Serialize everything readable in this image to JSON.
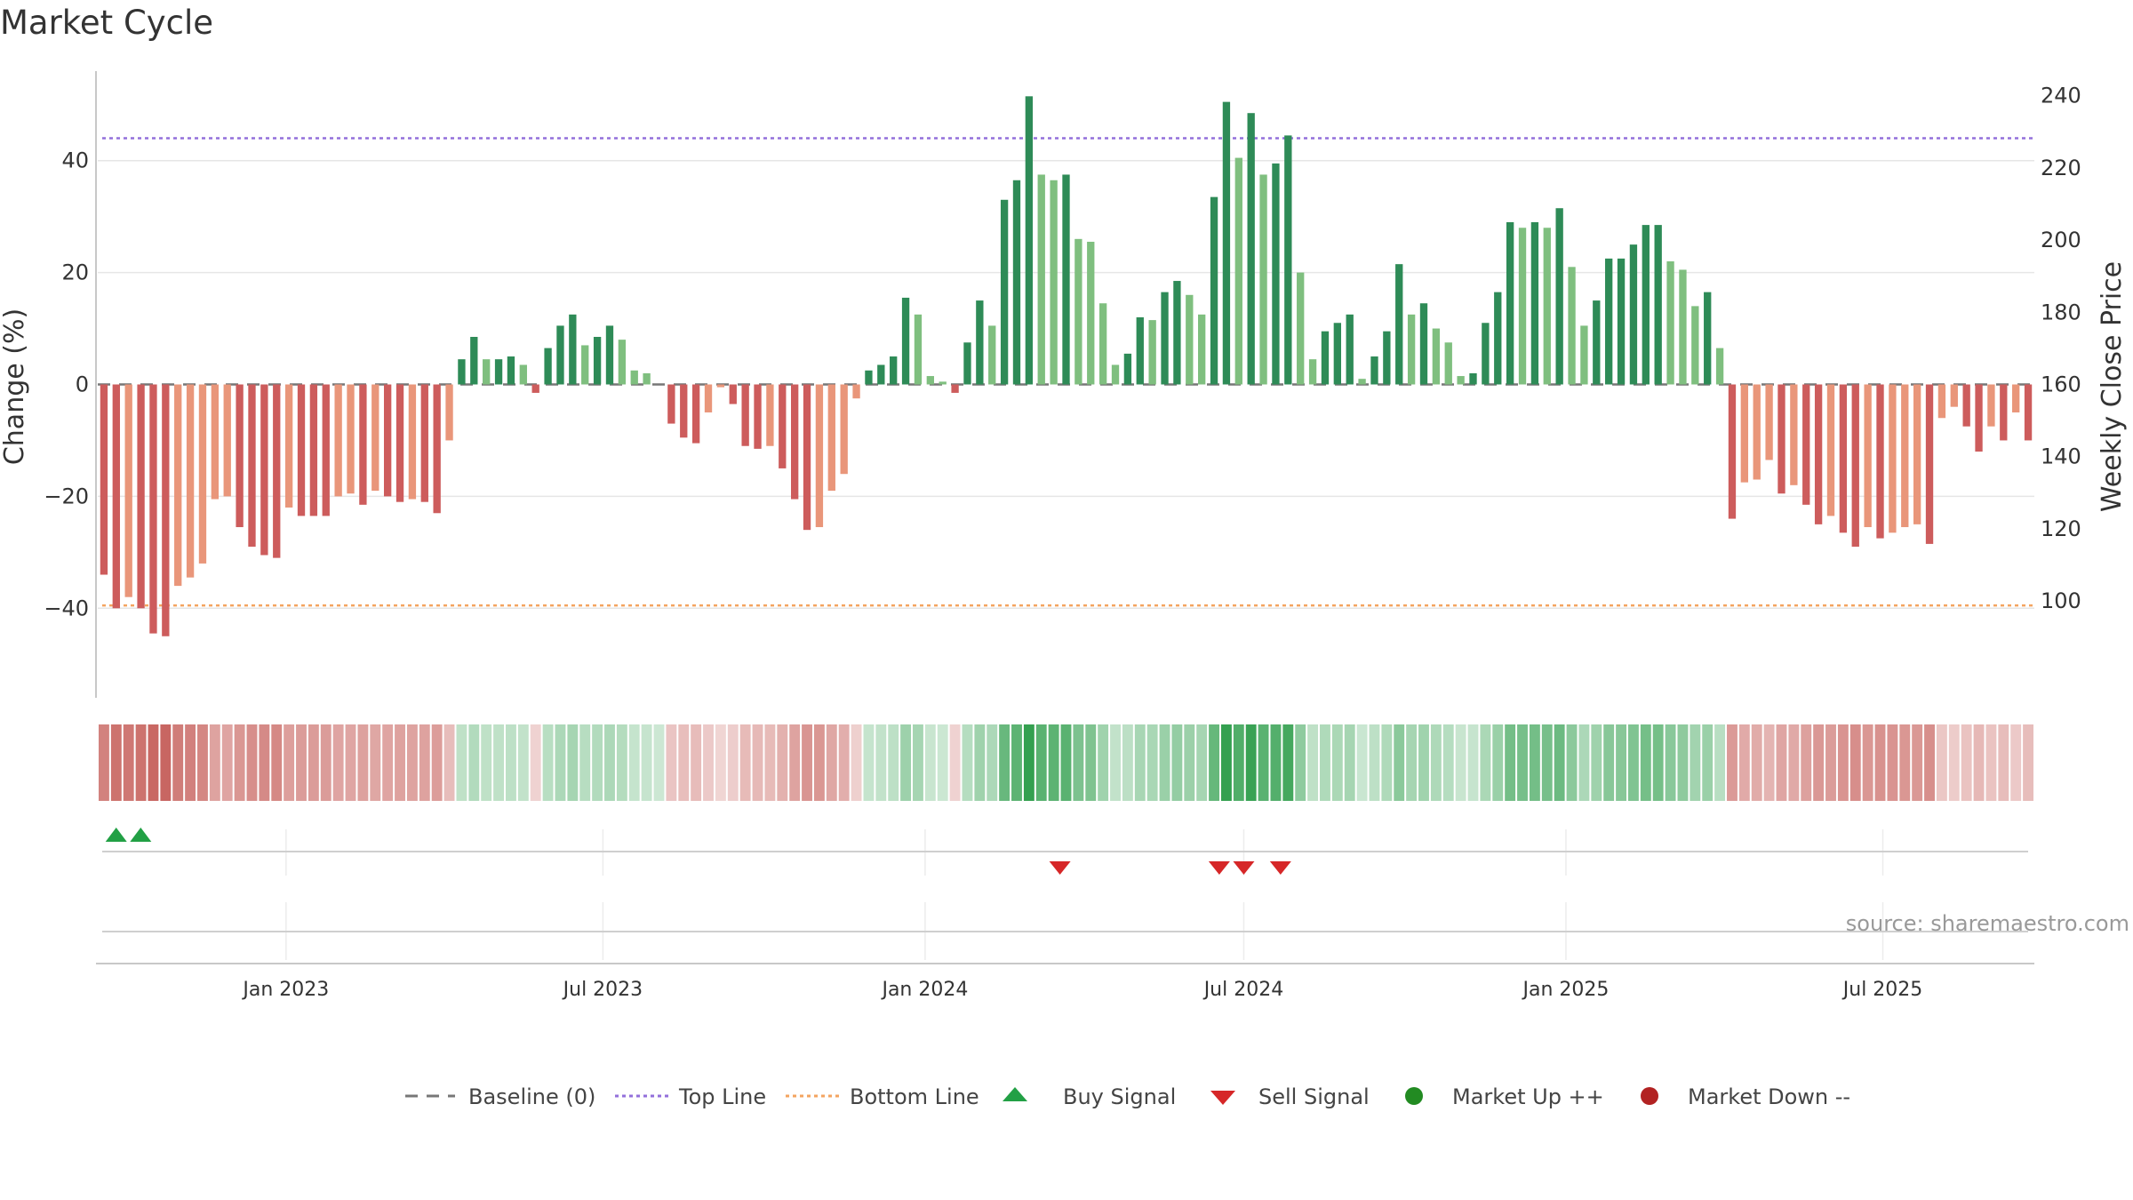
{
  "chart_data": {
    "type": "bar",
    "title": "Market Cycle",
    "ylabel": "Change (%)",
    "y2label": "Weekly Close Price",
    "ylim": [
      -56,
      56
    ],
    "yticks": [
      -40,
      -20,
      0,
      20,
      40
    ],
    "y2lim": [
      85,
      250
    ],
    "y2ticks": [
      100,
      120,
      140,
      160,
      180,
      200,
      220,
      240
    ],
    "top_line": 44,
    "bottom_line": -39.5,
    "start_date": "2022-09-19",
    "end_date": "2025-09-22",
    "xticks": [
      {
        "date": "2023-01-01",
        "label": "Jan 2023"
      },
      {
        "date": "2023-07-01",
        "label": "Jul 2023"
      },
      {
        "date": "2024-01-01",
        "label": "Jan 2024"
      },
      {
        "date": "2024-07-01",
        "label": "Jul 2024"
      },
      {
        "date": "2025-01-01",
        "label": "Jan 2025"
      },
      {
        "date": "2025-07-01",
        "label": "Jul 2025"
      }
    ],
    "values": [
      -34,
      -40,
      -38,
      -40,
      -44.5,
      -45,
      -36,
      -34.5,
      -32,
      -20.5,
      -20,
      -25.5,
      -29,
      -30.5,
      -31,
      -22,
      -23.5,
      -23.5,
      -23.5,
      -20,
      -19.5,
      -21.5,
      -19,
      -20,
      -21,
      -20.5,
      -21,
      -23,
      -10,
      4.5,
      8.5,
      4.5,
      4.5,
      5,
      3.5,
      -1.5,
      6.5,
      10.5,
      12.5,
      7,
      8.5,
      10.5,
      8,
      2.5,
      2,
      0,
      -7,
      -9.5,
      -10.5,
      -5,
      -0.5,
      -3.5,
      -11,
      -11.5,
      -11,
      -15,
      -20.5,
      -26,
      -25.5,
      -19,
      -16,
      -2.5,
      2.5,
      3.5,
      5,
      15.5,
      12.5,
      1.5,
      0.5,
      -1.5,
      7.5,
      15,
      10.5,
      33,
      36.5,
      51.5,
      37.5,
      36.5,
      37.5,
      26,
      25.5,
      14.5,
      3.5,
      5.5,
      12,
      11.5,
      16.5,
      18.5,
      16,
      12.5,
      33.5,
      50.5,
      40.5,
      48.5,
      37.5,
      39.5,
      44.5,
      20,
      4.5,
      9.5,
      11,
      12.5,
      1,
      5,
      9.5,
      21.5,
      12.5,
      14.5,
      10,
      7.5,
      1.5,
      2,
      11,
      16.5,
      29,
      28,
      29,
      28,
      31.5,
      21,
      10.5,
      15,
      22.5,
      22.5,
      25,
      28.5,
      28.5,
      22,
      20.5,
      14,
      16.5,
      6.5,
      -24,
      -17.5,
      -17,
      -13.5,
      -19.5,
      -18,
      -21.5,
      -25,
      -23.5,
      -26.5,
      -29,
      -25.5,
      -27.5,
      -26.5,
      -25.5,
      -25,
      -28.5,
      -6,
      -4,
      -7.5,
      -12,
      -7.5,
      -10,
      -5,
      -10
    ],
    "weekly_close_visible": false,
    "buy_signals": [
      "2022-09-26",
      "2022-10-10"
    ],
    "sell_signals": [
      "2024-03-18",
      "2024-06-17",
      "2024-07-01",
      "2024-07-22"
    ],
    "legend_position": "bottom-center",
    "grid": true
  },
  "colors": {
    "up_strong": "#2e8b57",
    "up_light": "#7fbf7f",
    "down_strong": "#cd5c5c",
    "down_light": "#e9967a",
    "top_line": "#9370db",
    "bottom_line": "#f4a460",
    "buy": "#22a045",
    "sell": "#d62728",
    "market_up": "#228b22",
    "market_down": "#b22222",
    "baseline": "#777777"
  },
  "legend": {
    "baseline": "Baseline (0)",
    "top_line": "Top Line",
    "bottom_line": "Bottom Line",
    "buy": "Buy Signal",
    "sell": "Sell Signal",
    "market_up": "Market Up ++",
    "market_down": "Market Down --"
  },
  "source": "source: sharemaestro.com"
}
